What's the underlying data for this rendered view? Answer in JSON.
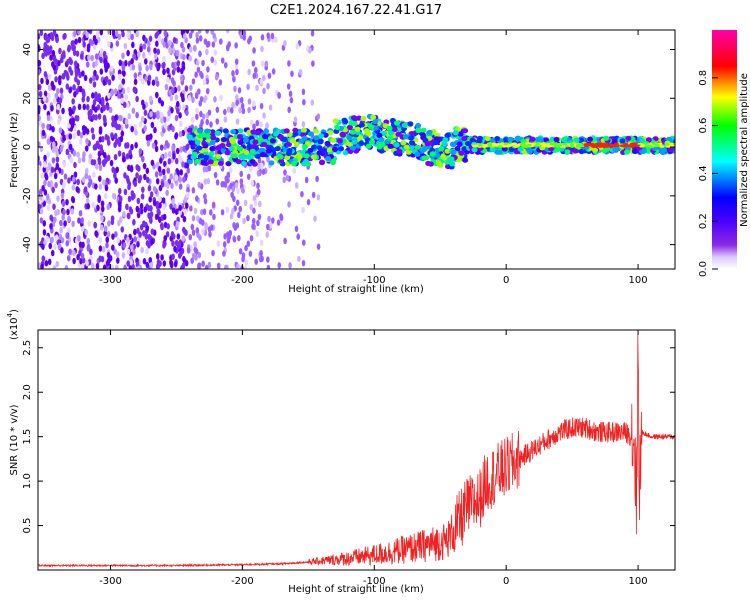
{
  "title": "C2E1.2024.167.22.41.G17",
  "chart_data": [
    {
      "type": "heatmap",
      "xlabel": "Height of straight line (km)",
      "ylabel": "Frequency (Hz)",
      "xlim": [
        -355,
        128
      ],
      "ylim": [
        -50,
        48
      ],
      "xticks": [
        -300,
        -200,
        -100,
        0,
        100
      ],
      "yticks": [
        -40,
        -20,
        0,
        20,
        40
      ],
      "colorbar": {
        "label": "Normalized spectral amplitude",
        "range": [
          0,
          1
        ],
        "ticks": [
          "0.0",
          "0.2",
          "0.4",
          "0.6",
          "0.8"
        ],
        "tick_values": [
          0.0,
          0.2,
          0.4,
          0.6,
          0.8
        ],
        "stops": [
          "#ffffff",
          "#dcc8ff",
          "#8a2be2",
          "#4b00ff",
          "#0000ff",
          "#00ffff",
          "#00ff00",
          "#ffff00",
          "#ff0000",
          "#ff00aa"
        ]
      },
      "grid": false
    },
    {
      "type": "line",
      "xlabel": "Height of straight line (km)",
      "ylabel": "SNR (10 * v/v)",
      "y_multiplier_label": "(x10",
      "y_multiplier_exp": "4",
      "xlim": [
        -355,
        128
      ],
      "ylim": [
        0,
        2.7
      ],
      "xticks": [
        -300,
        -200,
        -100,
        0,
        100
      ],
      "yticks": [
        0.5,
        1.0,
        1.5,
        2.0,
        2.5
      ],
      "series": [
        {
          "color": "#ee2222",
          "x": [
            -355,
            -300,
            -250,
            -200,
            -170,
            -150,
            -120,
            -100,
            -80,
            -60,
            -45,
            -40,
            -35,
            -30,
            -25,
            -20,
            -15,
            -10,
            0,
            10,
            20,
            30,
            40,
            50,
            60,
            70,
            80,
            90,
            97,
            99,
            100,
            101,
            103,
            110,
            128
          ],
          "y": [
            0.05,
            0.05,
            0.05,
            0.06,
            0.07,
            0.09,
            0.13,
            0.17,
            0.22,
            0.28,
            0.33,
            0.45,
            0.55,
            0.7,
            0.75,
            0.8,
            1.0,
            1.05,
            1.15,
            1.25,
            1.35,
            1.45,
            1.55,
            1.6,
            1.6,
            1.55,
            1.55,
            1.55,
            1.5,
            0.8,
            2.6,
            1.0,
            1.55,
            1.5,
            1.5
          ]
        }
      ],
      "grid": false
    }
  ]
}
